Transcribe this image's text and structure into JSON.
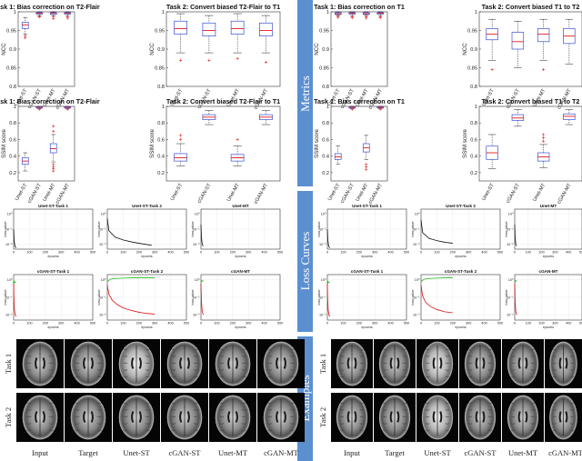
{
  "sections": [
    "Metrics",
    "Loss Curves",
    "Examples"
  ],
  "colors": {
    "band": "#5b8fcf",
    "box": "#3b4fd6",
    "median": "#e01c1c",
    "outlier": "#e01c1c",
    "loss_black": "#111111",
    "loss_green": "#22bb22",
    "loss_red": "#dd1111"
  },
  "box_categories": [
    "Unet-ST",
    "cGAN-ST",
    "Unet-MT",
    "cGAN-MT"
  ],
  "chart_data": [
    {
      "type": "box",
      "group": "left",
      "title": "Task 1: Bias correction on T2-Flair",
      "ylabel": "NCC",
      "ylim": [
        0.8,
        1
      ],
      "yticks": [
        "0.8",
        "0.85",
        "0.9",
        "0.95",
        "1"
      ],
      "categories": [
        "Unet-ST",
        "cGAN-ST",
        "Unet-MT",
        "cGAN-MT"
      ],
      "boxes": [
        {
          "min": 0.94,
          "q1": 0.955,
          "median": 0.965,
          "q3": 0.972,
          "max": 0.985,
          "outliers": [
            0.93,
            0.935
          ]
        },
        {
          "min": 0.99,
          "q1": 0.994,
          "median": 0.996,
          "q3": 0.998,
          "max": 1.0,
          "outliers": [
            0.986,
            0.988
          ]
        },
        {
          "min": 0.99,
          "q1": 0.993,
          "median": 0.996,
          "q3": 0.998,
          "max": 1.0,
          "outliers": [
            0.982,
            0.986
          ]
        },
        {
          "min": 0.99,
          "q1": 0.994,
          "median": 0.996,
          "q3": 0.998,
          "max": 1.0,
          "outliers": [
            0.983,
            0.987
          ]
        }
      ]
    },
    {
      "type": "box",
      "group": "left",
      "title": "Task 2: Convert biased T2-Flair to T1",
      "ylabel": "NCC",
      "ylim": [
        0.8,
        1
      ],
      "yticks": [
        "0.8",
        "0.85",
        "0.9",
        "0.95",
        "1"
      ],
      "categories": [
        "Unet-ST",
        "cGAN-ST",
        "Unet-MT",
        "cGAN-MT"
      ],
      "boxes": [
        {
          "min": 0.89,
          "q1": 0.94,
          "median": 0.955,
          "q3": 0.975,
          "max": 0.995,
          "outliers": [
            0.87
          ]
        },
        {
          "min": 0.89,
          "q1": 0.935,
          "median": 0.95,
          "q3": 0.97,
          "max": 0.99,
          "outliers": [
            0.87
          ]
        },
        {
          "min": 0.89,
          "q1": 0.94,
          "median": 0.955,
          "q3": 0.975,
          "max": 0.995,
          "outliers": [
            0.875
          ]
        },
        {
          "min": 0.89,
          "q1": 0.935,
          "median": 0.95,
          "q3": 0.97,
          "max": 0.99,
          "outliers": [
            0.865
          ]
        }
      ]
    },
    {
      "type": "box",
      "group": "right",
      "title": "Task 1: Bias correction on T1",
      "ylabel": "NCC",
      "ylim": [
        0.8,
        1
      ],
      "yticks": [
        "0.8",
        "0.85",
        "0.9",
        "0.95",
        "1"
      ],
      "categories": [
        "Unet-ST",
        "cGAN-ST",
        "Unet-MT",
        "cGAN-MT"
      ],
      "boxes": [
        {
          "min": 0.99,
          "q1": 0.993,
          "median": 0.995,
          "q3": 0.998,
          "max": 1.0,
          "outliers": [
            0.985,
            0.988
          ]
        },
        {
          "min": 0.99,
          "q1": 0.994,
          "median": 0.996,
          "q3": 0.998,
          "max": 1.0,
          "outliers": [
            0.984,
            0.987
          ]
        },
        {
          "min": 0.99,
          "q1": 0.993,
          "median": 0.995,
          "q3": 0.998,
          "max": 1.0,
          "outliers": [
            0.983,
            0.986
          ]
        },
        {
          "min": 0.99,
          "q1": 0.994,
          "median": 0.996,
          "q3": 0.998,
          "max": 1.0,
          "outliers": [
            0.984,
            0.987
          ]
        }
      ]
    },
    {
      "type": "box",
      "group": "right",
      "title": "Task 2: Convert biased T1 to T2",
      "ylabel": "NCC",
      "ylim": [
        0.8,
        1
      ],
      "yticks": [
        "0.8",
        "0.85",
        "0.9",
        "0.95",
        "1"
      ],
      "categories": [
        "Unet-ST",
        "cGAN-ST",
        "Unet-MT",
        "cGAN-MT"
      ],
      "boxes": [
        {
          "min": 0.87,
          "q1": 0.925,
          "median": 0.94,
          "q3": 0.955,
          "max": 0.98,
          "outliers": [
            0.845
          ]
        },
        {
          "min": 0.85,
          "q1": 0.9,
          "median": 0.92,
          "q3": 0.945,
          "max": 0.975,
          "outliers": []
        },
        {
          "min": 0.87,
          "q1": 0.92,
          "median": 0.94,
          "q3": 0.955,
          "max": 0.98,
          "outliers": [
            0.845
          ]
        },
        {
          "min": 0.86,
          "q1": 0.915,
          "median": 0.935,
          "q3": 0.955,
          "max": 0.98,
          "outliers": []
        }
      ]
    },
    {
      "type": "box",
      "group": "left",
      "title": "Task 1: Bias correction on T2-Flair",
      "ylabel": "SSIM score",
      "ylim": [
        0.1,
        1
      ],
      "yticks": [
        "0.2",
        "0.4",
        "0.6",
        "0.8",
        "1"
      ],
      "categories": [
        "Unet-ST",
        "cGAN-ST",
        "Unet-MT",
        "cGAN-MT"
      ],
      "boxes": [
        {
          "min": 0.22,
          "q1": 0.3,
          "median": 0.34,
          "q3": 0.38,
          "max": 0.44,
          "outliers": []
        },
        {
          "min": 0.97,
          "q1": 0.98,
          "median": 0.99,
          "q3": 0.995,
          "max": 1.0,
          "outliers": [
            0.965
          ]
        },
        {
          "min": 0.33,
          "q1": 0.44,
          "median": 0.49,
          "q3": 0.55,
          "max": 0.66,
          "outliers": [
            0.3,
            0.27,
            0.25,
            0.22,
            0.7,
            0.76
          ]
        },
        {
          "min": 0.97,
          "q1": 0.98,
          "median": 0.99,
          "q3": 0.995,
          "max": 1.0,
          "outliers": [
            0.965
          ]
        }
      ]
    },
    {
      "type": "box",
      "group": "left",
      "title": "Task 2: Convert biased T2-Flair to T1",
      "ylabel": "SSIM score",
      "ylim": [
        0.1,
        1
      ],
      "yticks": [
        "0.2",
        "0.4",
        "0.6",
        "0.8",
        "1"
      ],
      "categories": [
        "Unet-ST",
        "cGAN-ST",
        "Unet-MT",
        "cGAN-MT"
      ],
      "boxes": [
        {
          "min": 0.28,
          "q1": 0.34,
          "median": 0.38,
          "q3": 0.43,
          "max": 0.55,
          "outliers": [
            0.6,
            0.65
          ]
        },
        {
          "min": 0.78,
          "q1": 0.84,
          "median": 0.87,
          "q3": 0.9,
          "max": 0.95,
          "outliers": []
        },
        {
          "min": 0.28,
          "q1": 0.34,
          "median": 0.38,
          "q3": 0.42,
          "max": 0.52,
          "outliers": [
            0.6
          ]
        },
        {
          "min": 0.78,
          "q1": 0.84,
          "median": 0.87,
          "q3": 0.9,
          "max": 0.95,
          "outliers": []
        }
      ]
    },
    {
      "type": "box",
      "group": "right",
      "title": "Task 1: Bias correction on T1",
      "ylabel": "SSIM score",
      "ylim": [
        0.1,
        1
      ],
      "yticks": [
        "0.2",
        "0.4",
        "0.6",
        "0.8",
        "1"
      ],
      "categories": [
        "Unet-ST",
        "cGAN-ST",
        "Unet-MT",
        "cGAN-MT"
      ],
      "boxes": [
        {
          "min": 0.3,
          "q1": 0.36,
          "median": 0.39,
          "q3": 0.43,
          "max": 0.52,
          "outliers": []
        },
        {
          "min": 0.97,
          "q1": 0.98,
          "median": 0.99,
          "q3": 0.995,
          "max": 1.0,
          "outliers": [
            0.965
          ]
        },
        {
          "min": 0.36,
          "q1": 0.45,
          "median": 0.5,
          "q3": 0.55,
          "max": 0.65,
          "outliers": [
            0.3,
            0.27,
            0.24
          ]
        },
        {
          "min": 0.97,
          "q1": 0.98,
          "median": 0.99,
          "q3": 0.995,
          "max": 1.0,
          "outliers": [
            0.965
          ]
        }
      ]
    },
    {
      "type": "box",
      "group": "right",
      "title": "Task 2: Convert biased T1 to T2",
      "ylabel": "SSIM score",
      "ylim": [
        0.1,
        1
      ],
      "yticks": [
        "0.2",
        "0.4",
        "0.6",
        "0.8",
        "1"
      ],
      "categories": [
        "Unet-ST",
        "cGAN-ST",
        "Unet-MT",
        "cGAN-MT"
      ],
      "boxes": [
        {
          "min": 0.25,
          "q1": 0.36,
          "median": 0.44,
          "q3": 0.52,
          "max": 0.66,
          "outliers": []
        },
        {
          "min": 0.76,
          "q1": 0.83,
          "median": 0.86,
          "q3": 0.9,
          "max": 0.96,
          "outliers": []
        },
        {
          "min": 0.26,
          "q1": 0.34,
          "median": 0.39,
          "q3": 0.44,
          "max": 0.54,
          "outliers": [
            0.58,
            0.62,
            0.66
          ]
        },
        {
          "min": 0.78,
          "q1": 0.84,
          "median": 0.88,
          "q3": 0.91,
          "max": 0.96,
          "outliers": []
        }
      ]
    },
    {
      "type": "line",
      "group": "left",
      "title": "Unet-ST-Task 1",
      "xlabel": "epochs",
      "ylabel": "loss value",
      "ylog": true,
      "xticks": [
        "0",
        "100",
        "200",
        "300",
        "400",
        "500"
      ],
      "yticks": [
        "10⁻²",
        "10⁻¹",
        "10⁰"
      ],
      "series": [
        {
          "color": "black",
          "x": [
            0,
            3,
            8,
            15
          ],
          "y": [
            0.1,
            0.02,
            0.008,
            0.006
          ]
        }
      ]
    },
    {
      "type": "line",
      "group": "left",
      "title": "Unet-ST-Task 2",
      "xlabel": "epochs",
      "ylabel": "loss value",
      "ylog": true,
      "xticks": [
        "0",
        "100",
        "200",
        "300",
        "400",
        "500"
      ],
      "yticks": [
        "10⁻²",
        "10⁻¹",
        "10⁰"
      ],
      "series": [
        {
          "color": "black",
          "x": [
            0,
            10,
            50,
            100,
            150,
            200,
            250,
            280
          ],
          "y": [
            0.5,
            0.08,
            0.03,
            0.02,
            0.015,
            0.012,
            0.01,
            0.009
          ]
        }
      ]
    },
    {
      "type": "line",
      "group": "left",
      "title": "Unet-MT",
      "xlabel": "epochs",
      "ylabel": "loss value",
      "ylog": true,
      "xticks": [
        "0",
        "100",
        "200",
        "300",
        "400",
        "500"
      ],
      "yticks": [
        "10⁻²",
        "10⁻¹",
        "10⁰"
      ],
      "series": [
        {
          "color": "black",
          "x": [
            0,
            3,
            8,
            15
          ],
          "y": [
            0.2,
            0.03,
            0.01,
            0.008
          ]
        }
      ]
    },
    {
      "type": "line",
      "group": "right",
      "title": "Unet-ST-Task 1",
      "xlabel": "epochs",
      "ylabel": "loss value",
      "ylog": true,
      "xticks": [
        "0",
        "100",
        "200",
        "300",
        "400",
        "500"
      ],
      "yticks": [
        "10⁻²",
        "10⁻¹",
        "10⁰"
      ],
      "series": [
        {
          "color": "black",
          "x": [
            0,
            3,
            8,
            15
          ],
          "y": [
            0.1,
            0.02,
            0.008,
            0.006
          ]
        }
      ]
    },
    {
      "type": "line",
      "group": "right",
      "title": "Unet-ST-Task 2",
      "xlabel": "epochs",
      "ylabel": "loss value",
      "ylog": true,
      "xticks": [
        "0",
        "100",
        "200",
        "300",
        "400",
        "500"
      ],
      "yticks": [
        "10⁻²",
        "10⁻¹",
        "10⁰"
      ],
      "series": [
        {
          "color": "black",
          "x": [
            0,
            10,
            50,
            100,
            150,
            200
          ],
          "y": [
            0.4,
            0.06,
            0.025,
            0.018,
            0.014,
            0.012
          ]
        }
      ]
    },
    {
      "type": "line",
      "group": "right",
      "title": "Unet-MT",
      "xlabel": "epochs",
      "ylabel": "loss value",
      "ylog": true,
      "xticks": [
        "0",
        "100",
        "200",
        "300",
        "400",
        "500"
      ],
      "yticks": [
        "10⁻²",
        "10⁻¹",
        "10⁰"
      ],
      "series": [
        {
          "color": "black",
          "x": [
            0,
            3,
            8,
            15
          ],
          "y": [
            0.2,
            0.03,
            0.01,
            0.008
          ]
        }
      ]
    },
    {
      "type": "line",
      "group": "left",
      "title": "cGAN-ST-Task 1",
      "xlabel": "epochs",
      "ylabel": "loss value",
      "ylog": true,
      "xticks": [
        "0",
        "100",
        "200",
        "300",
        "400",
        "500"
      ],
      "yticks": [
        "10⁻²",
        "10⁻¹",
        "10⁰"
      ],
      "series": [
        {
          "color": "green",
          "x": [
            0,
            2,
            5,
            10,
            15
          ],
          "y": [
            1.0,
            0.6,
            0.8,
            0.7,
            0.75
          ]
        },
        {
          "color": "red",
          "x": [
            0,
            2,
            5,
            10,
            15
          ],
          "y": [
            0.6,
            0.08,
            0.02,
            0.01,
            0.008
          ]
        }
      ]
    },
    {
      "type": "line",
      "group": "left",
      "title": "cGAN-ST-Task 2",
      "xlabel": "epochs",
      "ylabel": "loss value",
      "ylog": true,
      "xticks": [
        "0",
        "100",
        "200",
        "300",
        "400",
        "500"
      ],
      "yticks": [
        "10⁻²",
        "10⁻¹",
        "10⁰"
      ],
      "series": [
        {
          "color": "green",
          "x": [
            0,
            20,
            50,
            100,
            150,
            200,
            250,
            300
          ],
          "y": [
            0.8,
            1.1,
            1.2,
            1.25,
            1.3,
            1.3,
            1.3,
            1.3
          ]
        },
        {
          "color": "red",
          "x": [
            0,
            10,
            30,
            60,
            100,
            150,
            200,
            250,
            300
          ],
          "y": [
            0.5,
            0.15,
            0.07,
            0.04,
            0.025,
            0.018,
            0.014,
            0.012,
            0.011
          ]
        }
      ]
    },
    {
      "type": "line",
      "group": "left",
      "title": "cGAN-MT",
      "xlabel": "epochs",
      "ylabel": "loss value",
      "ylog": true,
      "xticks": [
        "0",
        "100",
        "200",
        "300",
        "400",
        "500"
      ],
      "yticks": [
        "10⁻²",
        "10⁻¹",
        "10⁰"
      ],
      "series": [
        {
          "color": "green",
          "x": [
            0,
            5,
            10,
            15
          ],
          "y": [
            1.0,
            0.8,
            0.9,
            0.85
          ]
        },
        {
          "color": "red",
          "x": [
            0,
            3,
            8,
            15
          ],
          "y": [
            0.6,
            0.06,
            0.015,
            0.01
          ]
        }
      ]
    },
    {
      "type": "line",
      "group": "right",
      "title": "cGAN-ST-Task 1",
      "xlabel": "epochs",
      "ylabel": "loss value",
      "ylog": true,
      "xticks": [
        "0",
        "100",
        "200",
        "300",
        "400",
        "500"
      ],
      "yticks": [
        "10⁻²",
        "10⁻¹",
        "10⁰"
      ],
      "series": [
        {
          "color": "green",
          "x": [
            0,
            2,
            5,
            10,
            15
          ],
          "y": [
            1.0,
            0.6,
            0.8,
            0.7,
            0.75
          ]
        },
        {
          "color": "red",
          "x": [
            0,
            2,
            5,
            10,
            15
          ],
          "y": [
            0.6,
            0.08,
            0.02,
            0.01,
            0.008
          ]
        }
      ]
    },
    {
      "type": "line",
      "group": "right",
      "title": "cGAN-ST-Task 2",
      "xlabel": "epochs",
      "ylabel": "loss value",
      "ylog": true,
      "xticks": [
        "0",
        "100",
        "200",
        "300",
        "400",
        "500"
      ],
      "yticks": [
        "10⁻²",
        "10⁻¹",
        "10⁰"
      ],
      "series": [
        {
          "color": "green",
          "x": [
            0,
            20,
            50,
            100,
            150,
            200
          ],
          "y": [
            0.8,
            1.1,
            1.2,
            1.25,
            1.3,
            1.3
          ]
        },
        {
          "color": "red",
          "x": [
            0,
            10,
            30,
            60,
            100,
            150,
            200
          ],
          "y": [
            0.5,
            0.12,
            0.05,
            0.03,
            0.02,
            0.015,
            0.013
          ]
        }
      ]
    },
    {
      "type": "line",
      "group": "right",
      "title": "cGAN-MT",
      "xlabel": "epochs",
      "ylabel": "loss value",
      "ylog": true,
      "xticks": [
        "0",
        "100",
        "200",
        "300",
        "400",
        "500"
      ],
      "yticks": [
        "10⁻²",
        "10⁻¹",
        "10⁰"
      ],
      "series": [
        {
          "color": "green",
          "x": [
            0,
            5,
            10,
            15
          ],
          "y": [
            1.0,
            0.8,
            0.9,
            0.85
          ]
        },
        {
          "color": "red",
          "x": [
            0,
            3,
            8,
            15
          ],
          "y": [
            0.6,
            0.06,
            0.015,
            0.01
          ]
        }
      ]
    }
  ],
  "examples": {
    "row_labels": [
      "Task 1",
      "Task 2"
    ],
    "column_labels": [
      "Input",
      "Target",
      "Unet-ST",
      "cGAN-ST",
      "Unet-MT",
      "cGAN-MT"
    ]
  }
}
